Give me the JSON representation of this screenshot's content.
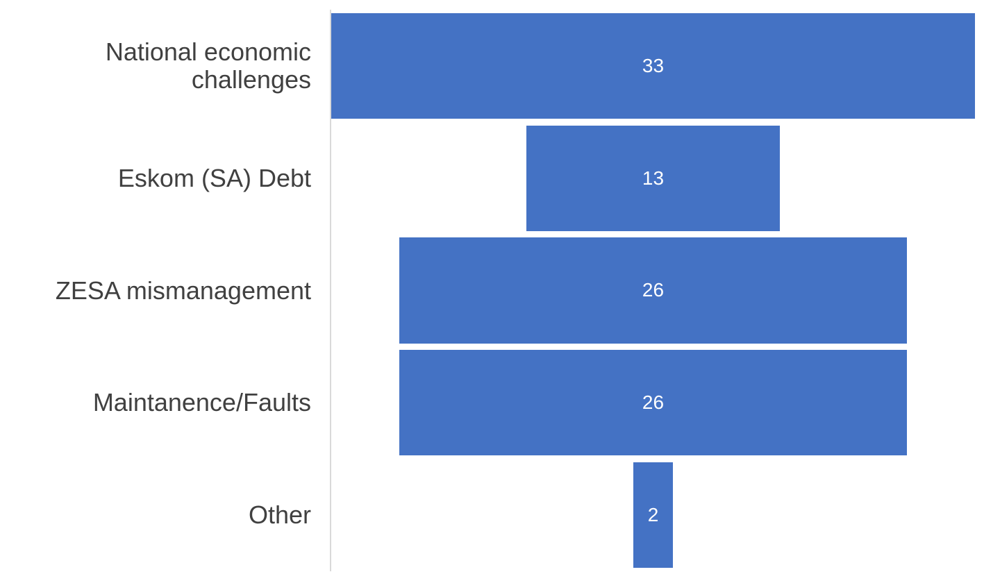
{
  "chart_data": {
    "type": "bar",
    "variant": "funnel-centered-horizontal-bars",
    "title": "",
    "xlabel": "",
    "ylabel": "",
    "categories": [
      "National economic challenges",
      "Eskom (SA) Debt",
      "ZESA mismanagement",
      "Maintanence/Faults",
      "Other"
    ],
    "values": [
      33,
      13,
      26,
      26,
      2
    ],
    "data_labels": [
      "33",
      "13",
      "26",
      "26",
      "2"
    ],
    "xmax": 33,
    "legend": "none",
    "grid": false,
    "axis_line": "vertical-left",
    "colors": {
      "bar": "#4472C4",
      "value_label": "#FFFFFF",
      "category_label": "#404040",
      "axis_line": "#D9D9D9",
      "background": "#FFFFFF"
    }
  }
}
